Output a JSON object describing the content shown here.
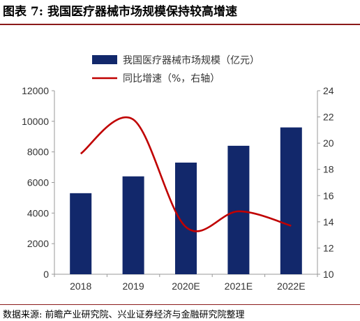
{
  "figure": {
    "title": "图表 7:  我国医疗器械市场规模保持较高增速",
    "source": "数据来源:  前瞻产业研究院、兴业证券经济与金融研究院整理"
  },
  "colors": {
    "bar": "#12286b",
    "line": "#c00000",
    "rule": "#8b1a1a",
    "axis": "#999999"
  },
  "chart_data": {
    "type": "bar",
    "title": "",
    "categories": [
      "2018",
      "2019",
      "2020E",
      "2021E",
      "2022E"
    ],
    "series": [
      {
        "name": "我国医疗器械市场规模（亿元）",
        "type": "bar",
        "axis": "left",
        "values": [
          5300,
          6400,
          7300,
          8400,
          9600
        ]
      },
      {
        "name": "同比增速（%，右轴）",
        "type": "line",
        "axis": "right",
        "smooth": true,
        "values": [
          19.2,
          21.8,
          13.6,
          14.8,
          13.7
        ]
      }
    ],
    "y_left": {
      "range": [
        0,
        12000
      ],
      "ticks": [
        "0",
        "2000",
        "4000",
        "6000",
        "8000",
        "10000",
        "12000"
      ]
    },
    "y_right": {
      "range": [
        10,
        24
      ],
      "ticks": [
        "10",
        "12",
        "14",
        "16",
        "18",
        "20",
        "22",
        "24"
      ]
    },
    "grid": false,
    "legend_position": "top-center"
  }
}
